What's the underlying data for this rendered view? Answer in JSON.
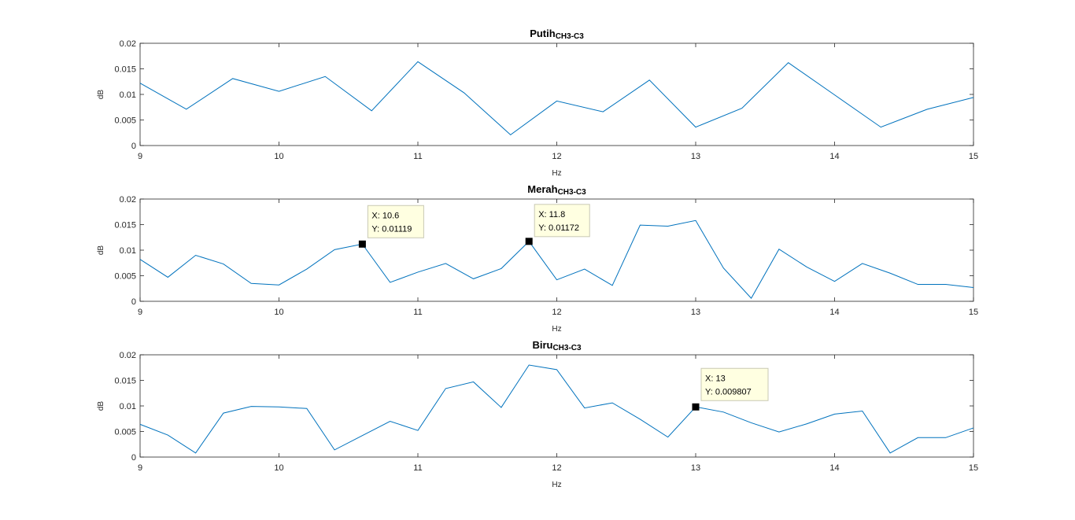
{
  "chart_data": [
    {
      "type": "line",
      "title_main": "Putih",
      "title_sub": "CH3-C3",
      "xlabel": "Hz",
      "ylabel": "dB",
      "xlim": [
        9,
        15
      ],
      "ylim": [
        0,
        0.02
      ],
      "xticks": [
        9,
        10,
        11,
        12,
        13,
        14,
        15
      ],
      "yticks": [
        0,
        0.005,
        0.01,
        0.015,
        0.02
      ],
      "xtick_labels": [
        "9",
        "10",
        "11",
        "12",
        "13",
        "14",
        "15"
      ],
      "ytick_labels": [
        "0",
        "0.005",
        "0.01",
        "0.015",
        "0.02"
      ],
      "color": "#0072bd",
      "grid": false,
      "x": [
        9,
        9.333,
        9.667,
        10,
        10.333,
        10.667,
        11,
        11.333,
        11.667,
        12,
        12.333,
        12.667,
        13,
        13.333,
        13.667,
        14,
        14.333,
        14.667,
        15
      ],
      "y": [
        0.0122,
        0.0071,
        0.0131,
        0.0106,
        0.0135,
        0.0068,
        0.0164,
        0.0103,
        0.0021,
        0.0087,
        0.0066,
        0.0128,
        0.0036,
        0.0073,
        0.0162,
        0.0099,
        0.0036,
        0.0071,
        0.0094
      ],
      "datatips": []
    },
    {
      "type": "line",
      "title_main": "Merah",
      "title_sub": "CH3-C3",
      "xlabel": "Hz",
      "ylabel": "dB",
      "xlim": [
        9,
        15
      ],
      "ylim": [
        0,
        0.02
      ],
      "xticks": [
        9,
        10,
        11,
        12,
        13,
        14,
        15
      ],
      "yticks": [
        0,
        0.005,
        0.01,
        0.015,
        0.02
      ],
      "xtick_labels": [
        "9",
        "10",
        "11",
        "12",
        "13",
        "14",
        "15"
      ],
      "ytick_labels": [
        "0",
        "0.005",
        "0.01",
        "0.015",
        "0.02"
      ],
      "color": "#0072bd",
      "grid": false,
      "x": [
        9,
        9.2,
        9.4,
        9.6,
        9.8,
        10,
        10.2,
        10.4,
        10.6,
        10.8,
        11,
        11.2,
        11.4,
        11.6,
        11.8,
        12,
        12.2,
        12.4,
        12.6,
        12.8,
        13,
        13.2,
        13.4,
        13.6,
        13.8,
        14,
        14.2,
        14.4,
        14.6,
        14.8,
        15
      ],
      "y": [
        0.0082,
        0.0047,
        0.009,
        0.0073,
        0.0035,
        0.0032,
        0.0063,
        0.0101,
        0.01119,
        0.0037,
        0.0057,
        0.0074,
        0.0044,
        0.0064,
        0.01172,
        0.0042,
        0.0063,
        0.0031,
        0.0149,
        0.0147,
        0.0158,
        0.0065,
        0.0006,
        0.0102,
        0.0067,
        0.0039,
        0.0074,
        0.0055,
        0.0033,
        0.0033,
        0.0027
      ],
      "datatips": [
        {
          "x": 10.6,
          "y": 0.01119,
          "x_text": "X: 10.6",
          "y_text": "Y: 0.01119"
        },
        {
          "x": 11.8,
          "y": 0.01172,
          "x_text": "X: 11.8",
          "y_text": "Y: 0.01172"
        }
      ]
    },
    {
      "type": "line",
      "title_main": "Biru",
      "title_sub": "CH3-C3",
      "xlabel": "Hz",
      "ylabel": "dB",
      "xlim": [
        9,
        15
      ],
      "ylim": [
        0,
        0.02
      ],
      "xticks": [
        9,
        10,
        11,
        12,
        13,
        14,
        15
      ],
      "yticks": [
        0,
        0.005,
        0.01,
        0.015,
        0.02
      ],
      "xtick_labels": [
        "9",
        "10",
        "11",
        "12",
        "13",
        "14",
        "15"
      ],
      "ytick_labels": [
        "0",
        "0.005",
        "0.01",
        "0.015",
        "0.02"
      ],
      "color": "#0072bd",
      "grid": false,
      "x": [
        9,
        9.2,
        9.4,
        9.6,
        9.8,
        10,
        10.2,
        10.4,
        10.6,
        10.8,
        11,
        11.2,
        11.4,
        11.6,
        11.8,
        12,
        12.2,
        12.4,
        12.6,
        12.8,
        13,
        13.2,
        13.4,
        13.6,
        13.8,
        14,
        14.2,
        14.4,
        14.6,
        14.8,
        15
      ],
      "y": [
        0.0064,
        0.0043,
        0.0008,
        0.0086,
        0.0099,
        0.0098,
        0.0095,
        0.0014,
        0.0042,
        0.007,
        0.0052,
        0.0134,
        0.0147,
        0.0097,
        0.018,
        0.0171,
        0.0096,
        0.0106,
        0.0074,
        0.0039,
        0.009807,
        0.0088,
        0.0067,
        0.0049,
        0.0065,
        0.0084,
        0.009,
        0.0008,
        0.0038,
        0.0038,
        0.0057
      ],
      "datatips": [
        {
          "x": 13,
          "y": 0.009807,
          "x_text": "X: 13",
          "y_text": "Y: 0.009807"
        }
      ]
    }
  ]
}
